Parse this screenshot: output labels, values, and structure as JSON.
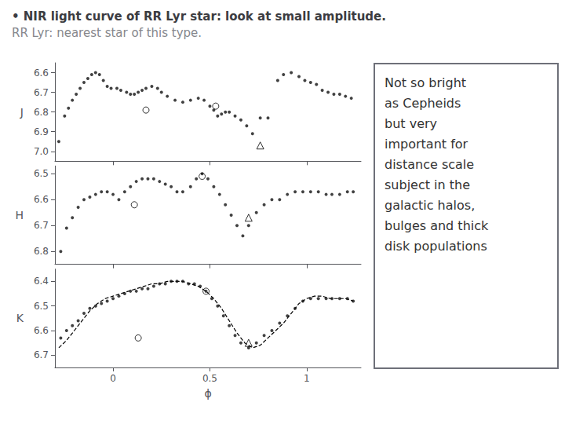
{
  "chart_data": [
    {
      "type": "scatter",
      "title": "• NIR light curve of RR Lyr star: look at small amplitude.",
      "subtitle": "RR Lyr: nearest star of this type.",
      "annotations": [
        "Not so bright\nas Cepheids\nbut very\nimportant for\ndistance scale\nsubject in the\ngalactic halos,\nbulges and thick\ndisk populations"
      ],
      "y_label": "J",
      "xlim": [
        -0.3,
        1.28
      ],
      "xticks": [
        0,
        0.5,
        1.0
      ],
      "ylim": [
        7.05,
        6.55
      ],
      "yticks": [
        6.6,
        6.7,
        6.8,
        6.9,
        {
          "value": 7.0,
          "label": "7.0"
        }
      ],
      "grid": false,
      "tick_labels": "y",
      "series": [
        {
          "type": "scatter",
          "marker": "dot",
          "color": "#111111",
          "x": [
            -0.28,
            -0.25,
            -0.23,
            -0.21,
            -0.19,
            -0.17,
            -0.15,
            -0.13,
            -0.11,
            -0.09,
            -0.07,
            -0.05,
            -0.03,
            -0.01,
            0.02,
            0.04,
            0.07,
            0.09,
            0.11,
            0.13,
            0.15,
            0.17,
            0.2,
            0.23,
            0.25,
            0.28,
            0.32,
            0.36,
            0.4,
            0.44,
            0.47,
            0.5,
            0.52,
            0.54,
            0.56,
            0.58,
            0.6,
            0.63,
            0.66,
            0.69,
            0.72,
            0.76,
            0.8,
            0.85,
            0.88,
            0.92,
            0.96,
            0.99,
            1.02,
            1.05,
            1.08,
            1.11,
            1.14,
            1.17,
            1.2,
            1.23
          ],
          "values": [
            6.95,
            6.82,
            6.78,
            6.74,
            6.71,
            6.68,
            6.65,
            6.63,
            6.61,
            6.6,
            6.61,
            6.64,
            6.67,
            6.68,
            6.68,
            6.69,
            6.7,
            6.71,
            6.71,
            6.7,
            6.69,
            6.68,
            6.67,
            6.68,
            6.7,
            6.72,
            6.74,
            6.75,
            6.74,
            6.73,
            6.74,
            6.77,
            6.79,
            6.82,
            6.81,
            6.8,
            6.8,
            6.82,
            6.84,
            6.87,
            6.91,
            6.83,
            6.83,
            6.64,
            6.61,
            6.6,
            6.62,
            6.64,
            6.65,
            6.66,
            6.69,
            6.7,
            6.71,
            6.71,
            6.72,
            6.73
          ]
        },
        {
          "type": "scatter",
          "marker": "open_circle",
          "color": "#000000",
          "x": [
            0.17,
            0.53
          ],
          "values": [
            6.79,
            6.77
          ]
        },
        {
          "type": "scatter",
          "marker": "open_triangle",
          "color": "#000000",
          "x": [
            0.76
          ],
          "values": [
            6.97
          ]
        }
      ]
    },
    {
      "type": "scatter",
      "y_label": "H",
      "xlim": [
        -0.3,
        1.28
      ],
      "xticks": [
        0,
        0.5,
        1.0
      ],
      "ylim": [
        6.85,
        6.47
      ],
      "yticks": [
        6.5,
        6.6,
        6.7,
        6.8
      ],
      "grid": false,
      "tick_labels": "y",
      "series": [
        {
          "type": "scatter",
          "marker": "dot",
          "color": "#111111",
          "x": [
            -0.27,
            -0.24,
            -0.21,
            -0.18,
            -0.15,
            -0.12,
            -0.09,
            -0.06,
            -0.03,
            0.0,
            0.03,
            0.06,
            0.09,
            0.12,
            0.15,
            0.18,
            0.21,
            0.24,
            0.27,
            0.3,
            0.33,
            0.36,
            0.4,
            0.43,
            0.46,
            0.49,
            0.52,
            0.55,
            0.58,
            0.61,
            0.64,
            0.67,
            0.7,
            0.74,
            0.78,
            0.82,
            0.86,
            0.9,
            0.94,
            0.98,
            1.02,
            1.06,
            1.1,
            1.13,
            1.17,
            1.21,
            1.24
          ],
          "values": [
            6.8,
            6.71,
            6.67,
            6.63,
            6.6,
            6.59,
            6.58,
            6.57,
            6.57,
            6.58,
            6.6,
            6.57,
            6.55,
            6.53,
            6.52,
            6.52,
            6.52,
            6.53,
            6.54,
            6.55,
            6.57,
            6.57,
            6.55,
            6.52,
            6.5,
            6.52,
            6.55,
            6.58,
            6.62,
            6.66,
            6.7,
            6.74,
            6.7,
            6.65,
            6.62,
            6.6,
            6.6,
            6.58,
            6.57,
            6.57,
            6.57,
            6.57,
            6.58,
            6.58,
            6.58,
            6.57,
            6.57
          ]
        },
        {
          "type": "scatter",
          "marker": "open_circle",
          "color": "#000000",
          "x": [
            0.11,
            0.46
          ],
          "values": [
            6.62,
            6.51
          ]
        },
        {
          "type": "scatter",
          "marker": "open_triangle",
          "color": "#000000",
          "x": [
            0.7
          ],
          "values": [
            6.67
          ]
        }
      ]
    },
    {
      "type": "scatter",
      "y_label": "K",
      "x_label": "ϕ",
      "xlim": [
        -0.3,
        1.28
      ],
      "xticks": [
        0,
        0.5,
        1
      ],
      "ylim": [
        6.75,
        6.35
      ],
      "yticks": [
        6.4,
        6.5,
        6.6,
        6.7
      ],
      "grid": false,
      "series": [
        {
          "type": "scatter",
          "marker": "dot",
          "color": "#111111",
          "x": [
            -0.27,
            -0.24,
            -0.21,
            -0.18,
            -0.15,
            -0.12,
            -0.09,
            -0.06,
            -0.03,
            0.0,
            0.03,
            0.06,
            0.09,
            0.12,
            0.15,
            0.18,
            0.21,
            0.24,
            0.27,
            0.3,
            0.33,
            0.36,
            0.39,
            0.42,
            0.45,
            0.48,
            0.51,
            0.54,
            0.57,
            0.6,
            0.63,
            0.66,
            0.7,
            0.74,
            0.78,
            0.82,
            0.86,
            0.9,
            0.94,
            0.98,
            1.02,
            1.06,
            1.1,
            1.13,
            1.17,
            1.21,
            1.24
          ],
          "values": [
            6.63,
            6.6,
            6.58,
            6.56,
            6.53,
            6.51,
            6.5,
            6.49,
            6.48,
            6.47,
            6.46,
            6.45,
            6.44,
            6.44,
            6.43,
            6.43,
            6.42,
            6.41,
            6.41,
            6.4,
            6.4,
            6.4,
            6.41,
            6.41,
            6.42,
            6.44,
            6.47,
            6.5,
            6.54,
            6.58,
            6.62,
            6.65,
            6.67,
            6.65,
            6.62,
            6.6,
            6.57,
            6.54,
            6.51,
            6.48,
            6.47,
            6.47,
            6.47,
            6.47,
            6.47,
            6.47,
            6.48
          ]
        },
        {
          "type": "scatter",
          "marker": "open_circle",
          "color": "#000000",
          "x": [
            0.13,
            0.48
          ],
          "values": [
            6.63,
            6.44
          ]
        },
        {
          "type": "scatter",
          "marker": "open_triangle",
          "color": "#000000",
          "x": [
            0.7
          ],
          "values": [
            6.65
          ]
        },
        {
          "type": "line",
          "line_style": "dashed",
          "color": "#000000",
          "x": [
            -0.28,
            -0.24,
            -0.2,
            -0.16,
            -0.12,
            -0.08,
            -0.04,
            0.0,
            0.04,
            0.08,
            0.12,
            0.16,
            0.2,
            0.24,
            0.28,
            0.32,
            0.36,
            0.4,
            0.44,
            0.48,
            0.52,
            0.56,
            0.6,
            0.64,
            0.68,
            0.72,
            0.76,
            0.8,
            0.84,
            0.88,
            0.92,
            0.96,
            1.0,
            1.04,
            1.08,
            1.12,
            1.16,
            1.2,
            1.24
          ],
          "values": [
            6.67,
            6.64,
            6.6,
            6.56,
            6.52,
            6.49,
            6.47,
            6.46,
            6.45,
            6.44,
            6.43,
            6.42,
            6.41,
            6.41,
            6.4,
            6.4,
            6.4,
            6.41,
            6.42,
            6.44,
            6.47,
            6.51,
            6.56,
            6.61,
            6.65,
            6.67,
            6.66,
            6.63,
            6.6,
            6.57,
            6.53,
            6.49,
            6.47,
            6.46,
            6.46,
            6.47,
            6.47,
            6.47,
            6.48
          ]
        }
      ]
    }
  ]
}
